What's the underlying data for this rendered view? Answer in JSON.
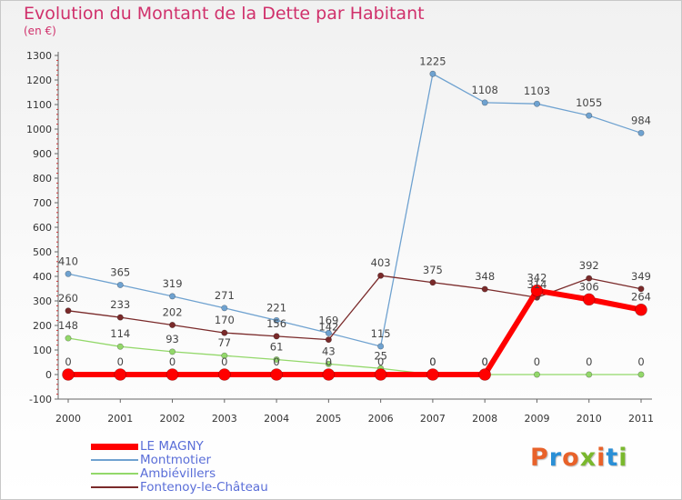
{
  "header": {
    "title": "Evolution du Montant de la Dette par Habitant",
    "subtitle": "(en €)"
  },
  "logo": {
    "text": "Proxiti",
    "colors": [
      "#e8622a",
      "#2a8fd6",
      "#e8622a",
      "#7ab82e",
      "#e8622a",
      "#2a8fd6",
      "#7ab82e"
    ]
  },
  "chart_data": {
    "type": "line",
    "x": [
      "2000",
      "2001",
      "2002",
      "2003",
      "2004",
      "2005",
      "2006",
      "2007",
      "2008",
      "2009",
      "2010",
      "2011"
    ],
    "ylim": [
      -100,
      1300
    ],
    "yticks": [
      -100,
      0,
      100,
      200,
      300,
      400,
      500,
      600,
      700,
      800,
      900,
      1000,
      1100,
      1200,
      1300
    ],
    "grid": false,
    "legend_placement": "bottom-left",
    "series": [
      {
        "name": "LE MAGNY",
        "color": "#ff0000",
        "values": [
          0,
          0,
          0,
          0,
          0,
          0,
          0,
          0,
          0,
          342,
          306,
          264
        ],
        "labels": [
          "0",
          "0",
          "0",
          "0",
          "0",
          "0",
          "0",
          "0",
          "0",
          "342",
          "306",
          "264"
        ]
      },
      {
        "name": "Montmotier",
        "color": "#6fa2d0",
        "values": [
          410,
          365,
          319,
          271,
          221,
          169,
          115,
          1225,
          1108,
          1103,
          1055,
          984
        ],
        "labels": [
          "410",
          "365",
          "319",
          "271",
          "221",
          "169",
          "115",
          "1225",
          "1108",
          "1103",
          "1055",
          "984"
        ]
      },
      {
        "name": "Ambiévillers",
        "color": "#93d86a",
        "values": [
          148,
          114,
          93,
          77,
          61,
          43,
          25,
          0,
          0,
          0,
          0,
          0
        ],
        "labels": [
          "148",
          "114",
          "93",
          "77",
          "61",
          "43",
          "25",
          "0",
          "0",
          "0",
          "0",
          "0"
        ]
      },
      {
        "name": "Fontenoy-le-Château",
        "color": "#7a2a2a",
        "values": [
          260,
          233,
          202,
          170,
          156,
          142,
          403,
          375,
          348,
          314,
          392,
          349
        ],
        "labels": [
          "260",
          "233",
          "202",
          "170",
          "156",
          "142",
          "403",
          "375",
          "348",
          "314",
          "392",
          "349"
        ]
      }
    ]
  }
}
